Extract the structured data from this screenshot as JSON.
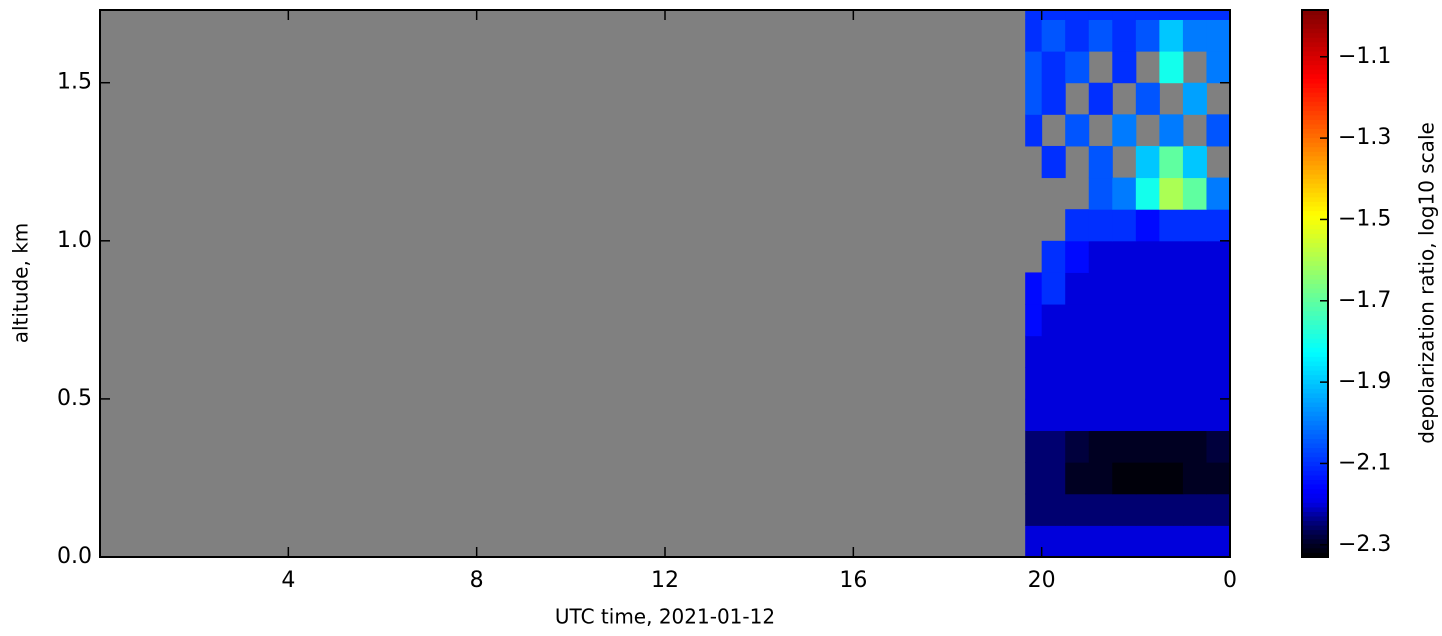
{
  "chart_data": {
    "type": "heatmap",
    "xlabel": "UTC time,  2021-01-12",
    "ylabel": "altitude, km",
    "xlim": [
      0,
      24
    ],
    "ylim": [
      0,
      1.73
    ],
    "xticks": [
      4,
      8,
      12,
      16,
      20,
      {
        "value": 24,
        "label": "0"
      }
    ],
    "yticks": [
      {
        "value": 0,
        "label": "0.0"
      },
      0.5,
      {
        "value": 1,
        "label": "1.0"
      },
      1.5
    ],
    "no_data_color": "#808080",
    "x_edges": [
      19.65,
      20,
      20.5,
      21,
      21.5,
      22,
      22.5,
      23,
      23.5,
      24
    ],
    "y_edges": [
      0,
      0.1,
      0.2,
      0.3,
      0.4,
      0.5,
      0.6,
      0.7,
      0.8,
      0.9,
      1,
      1.1,
      1.2,
      1.3,
      1.4,
      1.5,
      1.6,
      1.7,
      1.73
    ],
    "z": [
      [
        -2.2,
        -2.2,
        -2.2,
        -2.2,
        -2.2,
        -2.2,
        -2.2,
        -2.2,
        -2.2
      ],
      [
        -2.25,
        -2.25,
        -2.25,
        -2.25,
        -2.25,
        -2.25,
        -2.25,
        -2.25,
        -2.25
      ],
      [
        -2.25,
        -2.25,
        -2.3,
        -2.3,
        -2.32,
        -2.32,
        -2.32,
        -2.3,
        -2.3
      ],
      [
        -2.25,
        -2.25,
        -2.28,
        -2.3,
        -2.3,
        -2.3,
        -2.3,
        -2.3,
        -2.28
      ],
      [
        -2.2,
        -2.2,
        -2.2,
        -2.2,
        -2.2,
        -2.2,
        -2.2,
        -2.2,
        -2.2
      ],
      [
        -2.2,
        -2.2,
        -2.2,
        -2.2,
        -2.2,
        -2.2,
        -2.2,
        -2.2,
        -2.2
      ],
      [
        -2.2,
        -2.2,
        -2.2,
        -2.2,
        -2.2,
        -2.2,
        -2.2,
        -2.2,
        -2.2
      ],
      [
        -2.15,
        -2.2,
        -2.2,
        -2.2,
        -2.2,
        -2.2,
        -2.2,
        -2.2,
        -2.2
      ],
      [
        -2.15,
        -2.1,
        -2.2,
        -2.2,
        -2.2,
        -2.2,
        -2.2,
        -2.2,
        -2.2
      ],
      [
        null,
        -2.1,
        -2.15,
        -2.2,
        -2.2,
        -2.2,
        -2.2,
        -2.2,
        -2.2
      ],
      [
        null,
        null,
        -2.1,
        -2.1,
        -2.1,
        -2.15,
        -2.1,
        -2.1,
        -2.1
      ],
      [
        null,
        null,
        null,
        -2.05,
        -2.0,
        -1.8,
        -1.6,
        -1.7,
        -2.0
      ],
      [
        null,
        -2.1,
        null,
        -2.05,
        null,
        -1.9,
        -1.7,
        -1.9,
        null
      ],
      [
        -2.1,
        null,
        -2.05,
        null,
        -2.0,
        null,
        -2.0,
        null,
        -2.05
      ],
      [
        -2.05,
        -2.1,
        null,
        -2.1,
        null,
        -2.05,
        null,
        -1.95,
        null
      ],
      [
        -2.05,
        -2.1,
        -2.05,
        null,
        -2.1,
        null,
        -1.8,
        null,
        -2.0
      ],
      [
        -2.1,
        -2.05,
        -2.1,
        -2.05,
        -2.1,
        -2.05,
        -1.9,
        -2.0,
        -2.0
      ],
      [
        -2.1,
        -2.1,
        -2.1,
        -2.1,
        -2.1,
        -2.1,
        -2.1,
        -2.1,
        -2.1
      ]
    ],
    "colorbar": {
      "label": "depolarization ratio, log10 scale",
      "colormap": "jet",
      "lim": [
        -2.33,
        -0.985
      ],
      "ticks": [
        {
          "value": -2.3,
          "label": "−2.3"
        },
        {
          "value": -2.1,
          "label": "−2.1"
        },
        {
          "value": -1.9,
          "label": "−1.9"
        },
        {
          "value": -1.7,
          "label": "−1.7"
        },
        {
          "value": -1.5,
          "label": "−1.5"
        },
        {
          "value": -1.3,
          "label": "−1.3"
        },
        {
          "value": -1.1,
          "label": "−1.1"
        }
      ]
    }
  }
}
